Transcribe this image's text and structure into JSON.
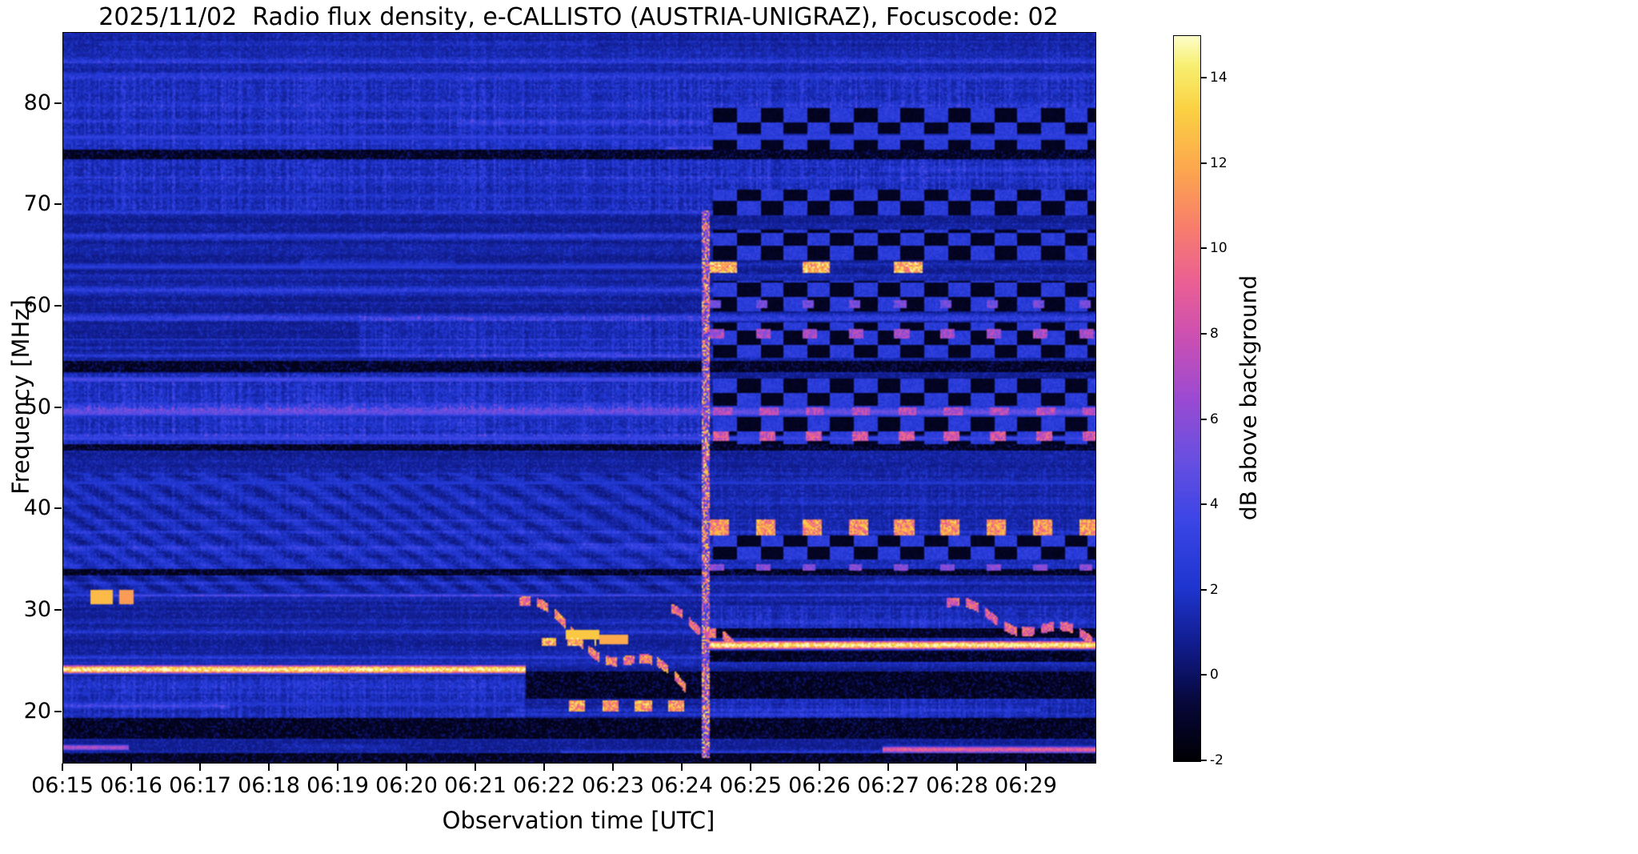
{
  "page": {
    "background": "#ffffff"
  },
  "chart_data": {
    "type": "heatmap",
    "title": "2025/11/02  Radio flux density, e-CALLISTO (AUSTRIA-UNIGRAZ), Focuscode: 02",
    "xlabel": "Observation time [UTC]",
    "ylabel": "Frequency [MHz]",
    "x_ticks": [
      "06:15",
      "06:16",
      "06:17",
      "06:18",
      "06:19",
      "06:20",
      "06:21",
      "06:22",
      "06:23",
      "06:24",
      "06:25",
      "06:26",
      "06:27",
      "06:28",
      "06:29"
    ],
    "start_time_utc": "06:15",
    "end_time_utc": "06:30",
    "x_range_minutes": [
      0,
      15
    ],
    "y_ticks": [
      20,
      30,
      40,
      50,
      60,
      70,
      80
    ],
    "y_range_mhz": [
      15,
      87
    ],
    "grid": false,
    "colorbar": {
      "label": "dB above background",
      "ticks": [
        -2,
        0,
        2,
        4,
        6,
        8,
        10,
        12,
        14
      ],
      "range": [
        -2,
        15
      ]
    },
    "colormap_stops": [
      [
        0.0,
        "#000004"
      ],
      [
        0.08,
        "#07073a"
      ],
      [
        0.16,
        "#101c8c"
      ],
      [
        0.24,
        "#1f35cf"
      ],
      [
        0.33,
        "#3a45e6"
      ],
      [
        0.42,
        "#6a4fe0"
      ],
      [
        0.5,
        "#9b4ad2"
      ],
      [
        0.58,
        "#c94fb4"
      ],
      [
        0.66,
        "#ea5f94"
      ],
      [
        0.74,
        "#f87f6a"
      ],
      [
        0.82,
        "#fca84d"
      ],
      [
        0.9,
        "#fbd142"
      ],
      [
        0.96,
        "#f7ef71"
      ],
      [
        1.0,
        "#fdfdc8"
      ]
    ],
    "features": {
      "noise": {
        "seed": 42,
        "rfi_count": 90
      },
      "lines": [
        {
          "f": 24.2,
          "w": 0.5,
          "amp": 15.3,
          "t0": 0.0,
          "t1": 6.72
        },
        {
          "f": 26.6,
          "w": 0.5,
          "amp": 15.3,
          "t0": 9.4,
          "t1": 15.0
        },
        {
          "f": 49.6,
          "w": 0.55,
          "amp": 5.2,
          "t0": 0.0,
          "t1": 15.0
        },
        {
          "f": 47.0,
          "w": 0.3,
          "amp": 3.8,
          "t0": 0.0,
          "t1": 15.0
        },
        {
          "f": 52.8,
          "w": 0.35,
          "amp": 4.2,
          "t0": 0.0,
          "t1": 9.4
        },
        {
          "f": 16.3,
          "w": 0.4,
          "amp": 9.5,
          "t0": 11.9,
          "t1": 15.0
        },
        {
          "f": 16.5,
          "w": 0.35,
          "amp": 7.5,
          "t0": 0.0,
          "t1": 0.95
        },
        {
          "f": 63.9,
          "w": 0.3,
          "amp": 2.8,
          "t0": 0.0,
          "t1": 9.4
        },
        {
          "f": 76.7,
          "w": 0.35,
          "amp": 3.2,
          "t0": 0.0,
          "t1": 15.0
        },
        {
          "f": 71.0,
          "w": 0.25,
          "amp": 2.2,
          "t0": 0.0,
          "t1": 9.4
        },
        {
          "f": 42.6,
          "w": 0.25,
          "amp": 2.5,
          "t0": 0.0,
          "t1": 15.0
        },
        {
          "f": 31.6,
          "w": 0.25,
          "amp": 2.2,
          "t0": 0.0,
          "t1": 15.0
        },
        {
          "f": 20.8,
          "w": 0.3,
          "amp": 2.5,
          "t0": 0.0,
          "t1": 6.7
        }
      ],
      "dark_rows": [
        {
          "f0": 53.6,
          "f1": 54.6,
          "t0": 0.0,
          "t1": 15.0
        },
        {
          "f0": 74.6,
          "f1": 75.5,
          "t0": 0.0,
          "t1": 15.0
        },
        {
          "f0": 45.8,
          "f1": 46.4,
          "t0": 0.0,
          "t1": 15.0
        },
        {
          "f0": 33.4,
          "f1": 34.1,
          "t0": 0.0,
          "t1": 15.0
        },
        {
          "f0": 17.3,
          "f1": 19.4,
          "t0": 0.0,
          "t1": 15.0
        },
        {
          "f0": 21.3,
          "f1": 24.0,
          "t0": 6.72,
          "t1": 15.0
        },
        {
          "f0": 24.9,
          "f1": 26.1,
          "t0": 9.4,
          "t1": 15.0
        },
        {
          "f0": 27.3,
          "f1": 28.3,
          "t0": 9.4,
          "t1": 15.0
        },
        {
          "f0": 15.0,
          "f1": 16.0,
          "t0": 0.0,
          "t1": 15.0
        }
      ],
      "noisy_bands": [
        {
          "f0": 69.5,
          "f1": 82.5,
          "amp": 1.5,
          "t0": 0.0,
          "t1": 15.0
        },
        {
          "f0": 55.0,
          "f1": 59.0,
          "amp": 1.3,
          "t0": 4.3,
          "t1": 9.4
        },
        {
          "f0": 18.0,
          "f1": 23.5,
          "amp": 1.3,
          "t0": 0.0,
          "t1": 6.7
        },
        {
          "f0": 46.4,
          "f1": 53.3,
          "amp": 1.7,
          "t0": 0.0,
          "t1": 9.4
        },
        {
          "f0": 25.5,
          "f1": 30.5,
          "amp": 1.2,
          "t0": 9.4,
          "t1": 15.0
        },
        {
          "f0": 19.0,
          "f1": 23.0,
          "amp": 1.1,
          "t0": 9.4,
          "t1": 15.0
        },
        {
          "f0": 83.0,
          "f1": 87.0,
          "amp": 0.5,
          "t0": 0.0,
          "t1": 15.0
        },
        {
          "f0": 34.5,
          "f1": 44.0,
          "amp": 0.6,
          "t0": 0.0,
          "t1": 15.0
        }
      ],
      "ripples": {
        "f0": 31.8,
        "f1": 43.5,
        "t0": 0.0,
        "t1": 9.4,
        "amp": 1.15,
        "fscale": 2.1,
        "tscale": 0.55
      },
      "vline": {
        "t": 9.33,
        "w": 0.06,
        "f0": 15.5,
        "f1": 69.5,
        "amp": 12
      },
      "checker": {
        "t0": 9.45,
        "t1": 15.0,
        "cellw": 0.34,
        "cellh": 1.35,
        "dark": -1.6,
        "bright": 2.0,
        "rows": [
          {
            "f0": 46.4,
            "f1": 49.1
          },
          {
            "f0": 50.2,
            "f1": 52.9
          },
          {
            "f0": 54.9,
            "f1": 58.4
          },
          {
            "f0": 59.6,
            "f1": 62.6
          },
          {
            "f0": 64.6,
            "f1": 67.6
          },
          {
            "f0": 69.0,
            "f1": 71.5
          },
          {
            "f0": 75.5,
            "f1": 79.6
          },
          {
            "f0": 35.0,
            "f1": 37.4
          }
        ]
      },
      "blips": [
        {
          "f": 38.2,
          "w": 0.8,
          "t0": 9.4,
          "t1": 15.0,
          "period": 0.67,
          "duty": 0.42,
          "amp": 11.5
        },
        {
          "f": 63.9,
          "w": 0.55,
          "t0": 9.4,
          "t1": 12.7,
          "period": 1.34,
          "duty": 0.3,
          "amp": 12.5
        },
        {
          "f": 57.3,
          "w": 0.5,
          "t0": 9.4,
          "t1": 15.0,
          "period": 0.67,
          "duty": 0.32,
          "amp": 7.0
        },
        {
          "f": 47.2,
          "w": 0.45,
          "t0": 9.45,
          "t1": 15.0,
          "period": 0.67,
          "duty": 0.35,
          "amp": 8.5
        },
        {
          "f": 49.6,
          "w": 0.4,
          "t0": 9.45,
          "t1": 15.0,
          "period": 0.67,
          "duty": 0.4,
          "amp": 7.5
        },
        {
          "f": 60.2,
          "w": 0.4,
          "t0": 9.4,
          "t1": 15.0,
          "period": 0.67,
          "duty": 0.25,
          "amp": 5.5
        },
        {
          "f": 20.6,
          "w": 0.5,
          "t0": 7.35,
          "t1": 9.25,
          "period": 0.48,
          "duty": 0.5,
          "amp": 12.0
        },
        {
          "f": 26.9,
          "w": 0.45,
          "t0": 6.95,
          "t1": 7.75,
          "period": 0.38,
          "duty": 0.55,
          "amp": 12.5
        },
        {
          "f": 34.3,
          "w": 0.35,
          "t0": 9.4,
          "t1": 15.0,
          "period": 0.67,
          "duty": 0.3,
          "amp": 6.0
        }
      ],
      "dashes": [
        {
          "t0": 6.55,
          "f0": 30.8,
          "t1": 9.05,
          "f1": 22.3,
          "n": 30,
          "amp": 11.0,
          "curve": 1.2
        },
        {
          "t0": 8.75,
          "f0": 30.2,
          "t1": 9.75,
          "f1": 26.6,
          "n": 12,
          "amp": 10.0,
          "curve": 0.4
        },
        {
          "t0": 12.75,
          "f0": 30.6,
          "t1": 14.95,
          "f1": 27.0,
          "n": 24,
          "amp": 9.5,
          "curve": 0.8
        }
      ],
      "blobs": [
        {
          "t": 0.55,
          "f": 31.4,
          "w": 0.16,
          "h": 0.7,
          "amp": 12.5
        },
        {
          "t": 0.92,
          "f": 31.4,
          "w": 0.11,
          "h": 0.7,
          "amp": 11.5
        },
        {
          "t": 7.55,
          "f": 27.6,
          "w": 0.25,
          "h": 0.5,
          "amp": 13.0
        },
        {
          "t": 8.0,
          "f": 27.2,
          "w": 0.2,
          "h": 0.5,
          "amp": 12.0
        }
      ]
    }
  }
}
